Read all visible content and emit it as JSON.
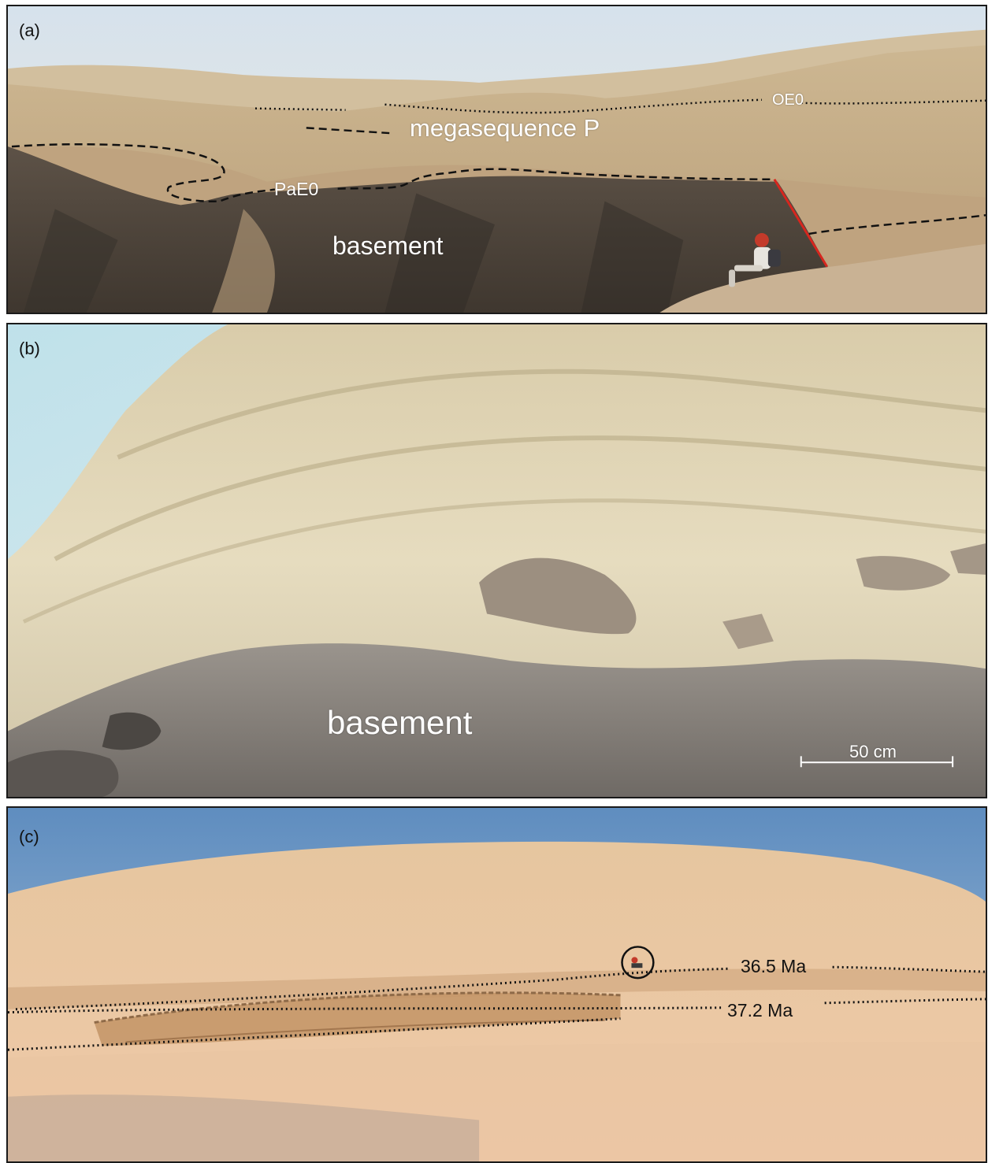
{
  "panels": {
    "a": {
      "letter": "(a)",
      "labels": {
        "oe0": "OE0",
        "megasequence": "megasequence P",
        "pae0": "PaE0",
        "basement": "basement"
      }
    },
    "b": {
      "letter": "(b)",
      "labels": {
        "basement": "basement",
        "scale": "50 cm"
      }
    },
    "c": {
      "letter": "(c)",
      "labels": {
        "upper_age": "36.5 Ma",
        "lower_age": "37.2 Ma"
      }
    }
  },
  "colors": {
    "sky_a": "#dce6ee",
    "sand": "#c8ab86",
    "basement_dark": "#4a4038",
    "fault_red": "#d7261e",
    "limestone": "#e3d8b8",
    "sky_c": "#7ea3c8",
    "sand_c": "#ecc9a4"
  }
}
